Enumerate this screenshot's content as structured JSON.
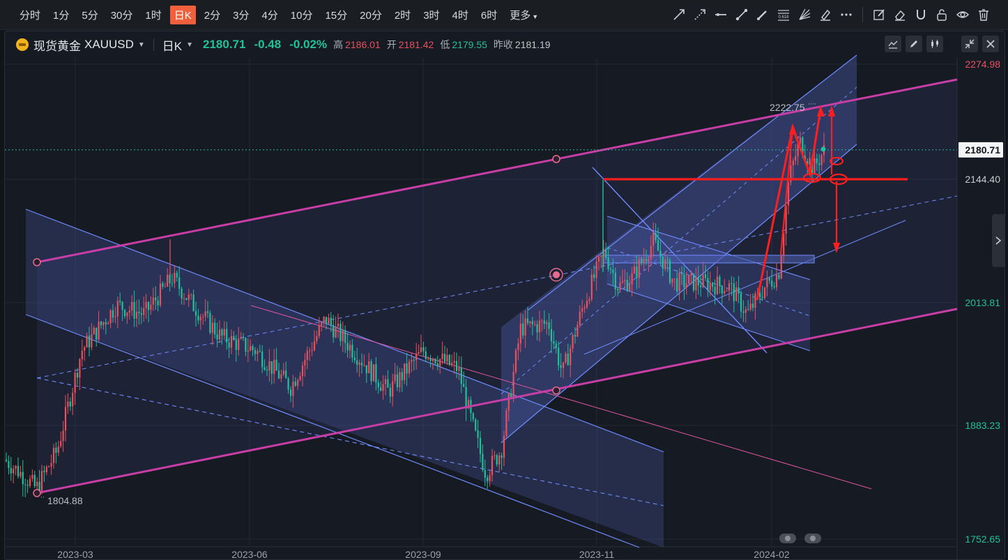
{
  "toolbar": {
    "periods": [
      {
        "label": "分时",
        "active": false
      },
      {
        "label": "1分",
        "active": false
      },
      {
        "label": "5分",
        "active": false
      },
      {
        "label": "30分",
        "active": false
      },
      {
        "label": "1时",
        "active": false
      },
      {
        "label": "日K",
        "active": true
      },
      {
        "label": "2分",
        "active": false
      },
      {
        "label": "3分",
        "active": false
      },
      {
        "label": "4分",
        "active": false
      },
      {
        "label": "10分",
        "active": false
      },
      {
        "label": "15分",
        "active": false
      },
      {
        "label": "20分",
        "active": false
      },
      {
        "label": "2时",
        "active": false
      },
      {
        "label": "3时",
        "active": false
      },
      {
        "label": "4时",
        "active": false
      },
      {
        "label": "6时",
        "active": false
      }
    ],
    "more_label": "更多",
    "fib_label": "0.618",
    "drawing_tools": [
      "trend-line-icon",
      "ray-line-icon",
      "horizontal-line-icon",
      "segment-icon",
      "brush-icon",
      "fibonacci-icon",
      "fan-icon",
      "highlighter-icon",
      "more-dots-icon"
    ],
    "edit_tools": [
      "edit-icon",
      "eraser-icon",
      "magnet-icon",
      "lock-icon",
      "eye-icon",
      "trash-icon"
    ]
  },
  "header": {
    "symbol_name": "现货黄金",
    "symbol_code": "XAUUSD",
    "interval": "日K",
    "last_price": "2180.71",
    "change": "-0.48",
    "change_pct": "-0.02%",
    "high_label": "高",
    "high": "2186.01",
    "open_label": "开",
    "open": "2181.42",
    "low_label": "低",
    "low": "2179.55",
    "prev_close_label": "昨收",
    "prev_close": "2181.19"
  },
  "price_axis": {
    "labels": [
      {
        "text": "2274.98",
        "color": "#e9515d"
      },
      {
        "text": "2144.40",
        "color": "#c9ccd2"
      },
      {
        "text": "2013.81",
        "color": "#22c19a"
      },
      {
        "text": "1883.23",
        "color": "#22c19a"
      },
      {
        "text": "1752.65",
        "color": "#22c19a"
      }
    ],
    "current_price_tag": "2180.71"
  },
  "time_axis": [
    "2023-03",
    "2023-06",
    "2023-09",
    "2023-11",
    "2024-02"
  ],
  "annotations": {
    "high_mark": "2222.75",
    "low_mark": "1804.88"
  },
  "colors": {
    "up": "#e9515d",
    "down": "#22c19a",
    "channel_fill": "#4a5aa8",
    "channel_line": "#6f8cff",
    "magenta": "#c83ea6",
    "red": "#ff1e1e",
    "accent": "#f0603c"
  }
}
